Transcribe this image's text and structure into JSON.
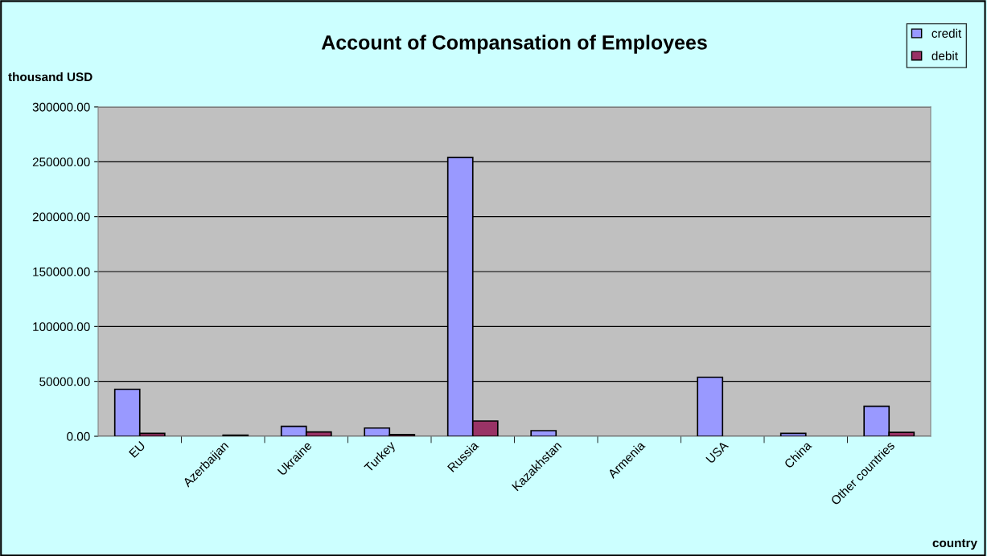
{
  "chart_data": {
    "type": "bar",
    "title": "Account of Compansation of Employees",
    "ylabel": "thousand USD",
    "xlabel": "country",
    "categories": [
      "EU",
      "Azerbaijan",
      "Ukraine",
      "Turkey",
      "Russia",
      "Kazakhstan",
      "Armenia",
      "USA",
      "China",
      "Other countries"
    ],
    "series": [
      {
        "name": "credit",
        "color": "#9999ff",
        "values": [
          42800,
          null,
          9000,
          7500,
          254000,
          5100,
          null,
          53800,
          2700,
          27300
        ]
      },
      {
        "name": "debit",
        "color": "#993366",
        "values": [
          2700,
          1000,
          3900,
          1500,
          13900,
          null,
          null,
          null,
          null,
          3600
        ]
      }
    ],
    "ylim": [
      0,
      300000
    ],
    "yticks": [
      {
        "value": 0,
        "label": "0.00"
      },
      {
        "value": 50000,
        "label": "50000.00"
      },
      {
        "value": 100000,
        "label": "100000.00"
      },
      {
        "value": 150000,
        "label": "150000.00"
      },
      {
        "value": 200000,
        "label": "200000.00"
      },
      {
        "value": 250000,
        "label": "250000.00"
      },
      {
        "value": 300000,
        "label": "300000.00"
      }
    ],
    "grid": "y",
    "legend": "top right"
  }
}
